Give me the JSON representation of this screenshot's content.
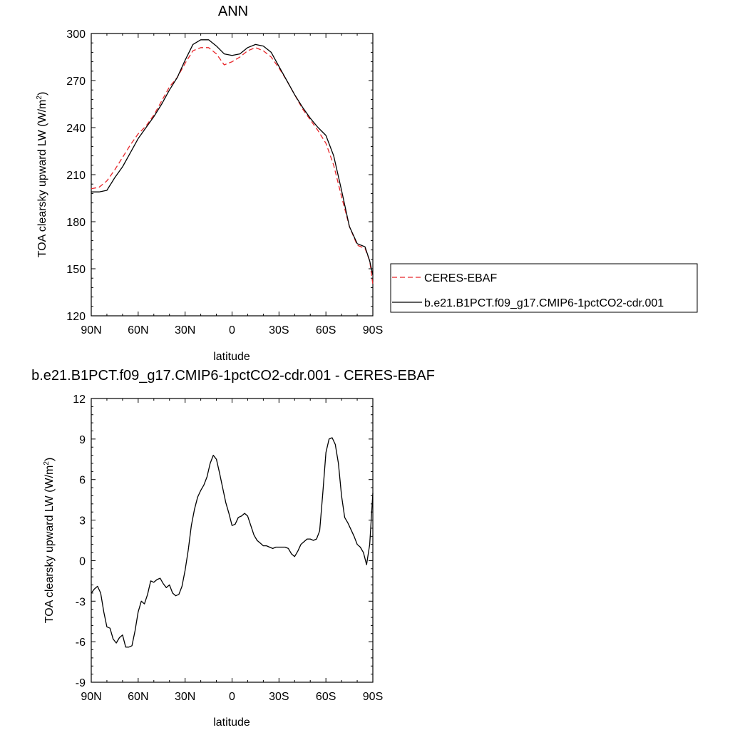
{
  "chart_data": [
    {
      "type": "line",
      "title": "ANN",
      "xlabel": "latitude",
      "ylabel": "TOA clearsky upward LW (W/m²)",
      "ylabel_main": "TOA clearsky upward LW (W/m",
      "ylabel_sup": "2",
      "ylabel_end": ")",
      "xlim": [
        90,
        -90
      ],
      "ylim": [
        120,
        300
      ],
      "x_ticks": [
        90,
        60,
        30,
        0,
        -30,
        -60,
        -90
      ],
      "x_tick_labels": [
        "90N",
        "60N",
        "30N",
        "0",
        "30S",
        "60S",
        "90S"
      ],
      "y_ticks": [
        120,
        150,
        180,
        210,
        240,
        270,
        300
      ],
      "y_tick_labels": [
        "120",
        "150",
        "180",
        "210",
        "240",
        "270",
        "300"
      ],
      "legend_placement": "right",
      "series": [
        {
          "name": "CERES-EBAF",
          "color": "#e8262a",
          "dash": "dashed",
          "x": [
            90,
            85,
            80,
            75,
            70,
            65,
            60,
            55,
            50,
            45,
            40,
            35,
            30,
            25,
            20,
            15,
            10,
            5,
            0,
            -5,
            -10,
            -15,
            -20,
            -25,
            -30,
            -35,
            -40,
            -45,
            -50,
            -55,
            -60,
            -65,
            -70,
            -75,
            -80,
            -85,
            -88,
            -90
          ],
          "y": [
            201,
            202,
            206,
            213,
            221,
            229,
            236,
            241,
            248,
            257,
            266,
            272,
            281,
            289,
            291,
            291,
            287,
            280,
            282,
            285,
            289,
            291,
            289,
            285,
            278,
            270,
            261,
            252,
            245,
            238,
            230,
            216,
            196,
            177,
            165,
            163,
            155,
            140
          ]
        },
        {
          "name": "b.e21.B1PCT.f09_g17.CMIP6-1pctCO2-cdr.001",
          "color": "#000000",
          "dash": "solid",
          "x": [
            90,
            85,
            80,
            75,
            70,
            65,
            60,
            55,
            50,
            45,
            40,
            35,
            30,
            25,
            20,
            15,
            10,
            5,
            0,
            -5,
            -10,
            -15,
            -20,
            -25,
            -30,
            -35,
            -40,
            -45,
            -50,
            -55,
            -60,
            -65,
            -70,
            -75,
            -80,
            -85,
            -88,
            -90
          ],
          "y": [
            199,
            199,
            200,
            208,
            215,
            224,
            233,
            240,
            247,
            255,
            264,
            272,
            283,
            293,
            296,
            296,
            292,
            287,
            286,
            287,
            291,
            293,
            292,
            288,
            279,
            270,
            261,
            253,
            246,
            240,
            235,
            222,
            200,
            177,
            166,
            164,
            155,
            146
          ]
        }
      ]
    },
    {
      "type": "line",
      "title": "b.e21.B1PCT.f09_g17.CMIP6-1pctCO2-cdr.001 - CERES-EBAF",
      "xlabel": "latitude",
      "ylabel": "TOA clearsky upward LW (W/m²)",
      "ylabel_main": "TOA clearsky upward LW (W/m",
      "ylabel_sup": "2",
      "ylabel_end": ")",
      "xlim": [
        90,
        -90
      ],
      "ylim": [
        -9,
        12
      ],
      "x_ticks": [
        90,
        60,
        30,
        0,
        -30,
        -60,
        -90
      ],
      "x_tick_labels": [
        "90N",
        "60N",
        "30N",
        "0",
        "30S",
        "60S",
        "90S"
      ],
      "y_ticks": [
        -9,
        -6,
        -3,
        0,
        3,
        6,
        9,
        12
      ],
      "y_tick_labels": [
        "-9",
        "-6",
        "-3",
        "0",
        "3",
        "6",
        "9",
        "12"
      ],
      "series": [
        {
          "color": "#000000",
          "dash": "solid",
          "x": [
            90,
            88,
            86,
            84,
            82,
            80,
            78,
            76,
            74,
            72,
            70,
            68,
            66,
            64,
            62,
            60,
            58,
            56,
            54,
            52,
            50,
            48,
            46,
            44,
            42,
            40,
            38,
            36,
            34,
            32,
            30,
            28,
            26,
            24,
            22,
            20,
            18,
            16,
            14,
            12,
            10,
            8,
            6,
            4,
            2,
            0,
            -2,
            -4,
            -6,
            -8,
            -10,
            -12,
            -14,
            -16,
            -18,
            -20,
            -22,
            -24,
            -26,
            -28,
            -30,
            -32,
            -34,
            -36,
            -38,
            -40,
            -42,
            -44,
            -46,
            -48,
            -50,
            -52,
            -54,
            -56,
            -58,
            -60,
            -62,
            -64,
            -66,
            -68,
            -70,
            -72,
            -74,
            -76,
            -78,
            -80,
            -82,
            -84,
            -86,
            -88,
            -90
          ],
          "y": [
            -2.4,
            -2.1,
            -1.9,
            -2.4,
            -3.8,
            -4.9,
            -5.0,
            -5.8,
            -6.1,
            -5.7,
            -5.5,
            -6.4,
            -6.4,
            -6.3,
            -5.2,
            -3.8,
            -3.0,
            -3.2,
            -2.5,
            -1.5,
            -1.6,
            -1.4,
            -1.3,
            -1.7,
            -2.0,
            -1.8,
            -2.4,
            -2.6,
            -2.5,
            -1.9,
            -0.7,
            0.8,
            2.6,
            3.8,
            4.7,
            5.2,
            5.6,
            6.2,
            7.2,
            7.8,
            7.5,
            6.5,
            5.4,
            4.3,
            3.5,
            2.6,
            2.7,
            3.2,
            3.3,
            3.5,
            3.3,
            2.6,
            1.9,
            1.5,
            1.3,
            1.1,
            1.1,
            1.0,
            0.9,
            1.0,
            1.0,
            1.0,
            1.0,
            0.9,
            0.5,
            0.3,
            0.7,
            1.2,
            1.4,
            1.6,
            1.6,
            1.5,
            1.6,
            2.2,
            5.0,
            8.0,
            9.0,
            9.1,
            8.6,
            7.2,
            4.8,
            3.2,
            2.8,
            2.3,
            1.8,
            1.2,
            1.0,
            0.6,
            -0.3,
            1.2,
            5.0
          ]
        }
      ]
    }
  ]
}
